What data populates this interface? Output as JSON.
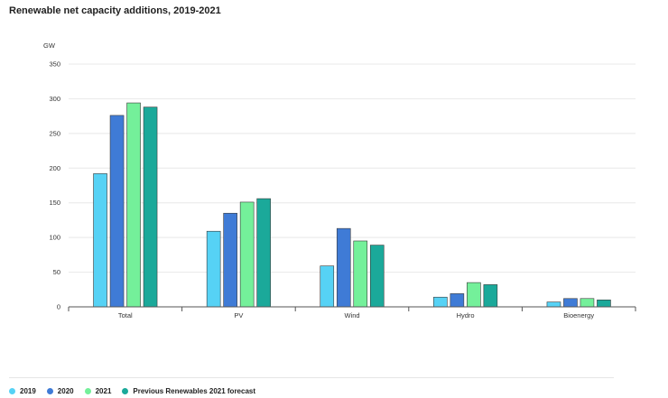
{
  "chart_data": {
    "type": "bar",
    "title": "Renewable net capacity additions, 2019-2021",
    "ylabel": "GW",
    "xlabel": "",
    "ylim": [
      0,
      350
    ],
    "yticks": [
      0,
      50,
      100,
      150,
      200,
      250,
      300,
      350
    ],
    "categories": [
      "Total",
      "PV",
      "Wind",
      "Hydro",
      "Bioenergy"
    ],
    "series": [
      {
        "name": "2019",
        "color": "#56d2f5",
        "values": [
          192,
          109,
          59,
          14,
          7
        ]
      },
      {
        "name": "2020",
        "color": "#3f7bd6",
        "values": [
          276,
          135,
          113,
          19,
          12
        ]
      },
      {
        "name": "2021",
        "color": "#74f09a",
        "values": [
          294,
          151,
          95,
          35,
          12
        ]
      },
      {
        "name": "Previous Renewables 2021 forecast",
        "color": "#1ba99a",
        "values": [
          288,
          156,
          89,
          32,
          10
        ]
      }
    ],
    "grid": true,
    "legend_position": "bottom-left"
  }
}
